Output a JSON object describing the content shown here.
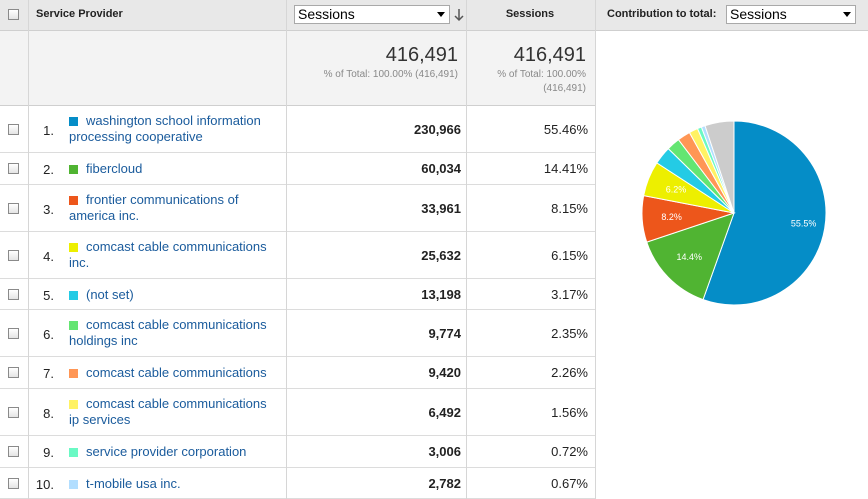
{
  "header": {
    "dimension_label": "Service Provider",
    "metric_selector": "Sessions",
    "metric_column": "Sessions",
    "contribution_label": "Contribution to total:",
    "contribution_selector": "Sessions"
  },
  "totals": {
    "col1_value": "416,491",
    "col1_note": "% of Total: 100.00% (416,491)",
    "col2_value": "416,491",
    "col2_note_line1": "% of Total: 100.00%",
    "col2_note_line2": "(416,491)"
  },
  "rows": [
    {
      "rank": "1.",
      "name": "washington school information processing cooperative",
      "sessions": "230,966",
      "percent": "55.46%",
      "color": "#058dc7"
    },
    {
      "rank": "2.",
      "name": "fibercloud",
      "sessions": "60,034",
      "percent": "14.41%",
      "color": "#50b432"
    },
    {
      "rank": "3.",
      "name": "frontier communications of america inc.",
      "sessions": "33,961",
      "percent": "8.15%",
      "color": "#ed561b"
    },
    {
      "rank": "4.",
      "name": "comcast cable communications inc.",
      "sessions": "25,632",
      "percent": "6.15%",
      "color": "#edef00"
    },
    {
      "rank": "5.",
      "name": "(not set)",
      "sessions": "13,198",
      "percent": "3.17%",
      "color": "#24cbe5"
    },
    {
      "rank": "6.",
      "name": "comcast cable communications holdings inc",
      "sessions": "9,774",
      "percent": "2.35%",
      "color": "#64e572"
    },
    {
      "rank": "7.",
      "name": "comcast cable communications",
      "sessions": "9,420",
      "percent": "2.26%",
      "color": "#ff9655"
    },
    {
      "rank": "8.",
      "name": "comcast cable communications ip services",
      "sessions": "6,492",
      "percent": "1.56%",
      "color": "#fff263"
    },
    {
      "rank": "9.",
      "name": "service provider corporation",
      "sessions": "3,006",
      "percent": "0.72%",
      "color": "#6af9c4"
    },
    {
      "rank": "10.",
      "name": "t-mobile usa inc.",
      "sessions": "2,782",
      "percent": "0.67%",
      "color": "#b2deff"
    }
  ],
  "pie": {
    "slices": [
      {
        "value": 55.46,
        "color": "#058dc7",
        "label": "55.5%"
      },
      {
        "value": 14.41,
        "color": "#50b432",
        "label": "14.4%"
      },
      {
        "value": 8.15,
        "color": "#ed561b",
        "label": "8.2%"
      },
      {
        "value": 6.15,
        "color": "#edef00",
        "label": "6.2%"
      },
      {
        "value": 3.17,
        "color": "#24cbe5",
        "label": ""
      },
      {
        "value": 2.35,
        "color": "#64e572",
        "label": ""
      },
      {
        "value": 2.26,
        "color": "#ff9655",
        "label": ""
      },
      {
        "value": 1.56,
        "color": "#fff263",
        "label": ""
      },
      {
        "value": 0.72,
        "color": "#6af9c4",
        "label": ""
      },
      {
        "value": 0.67,
        "color": "#b2deff",
        "label": ""
      },
      {
        "value": 5.1,
        "color": "#cccccc",
        "label": ""
      }
    ]
  }
}
